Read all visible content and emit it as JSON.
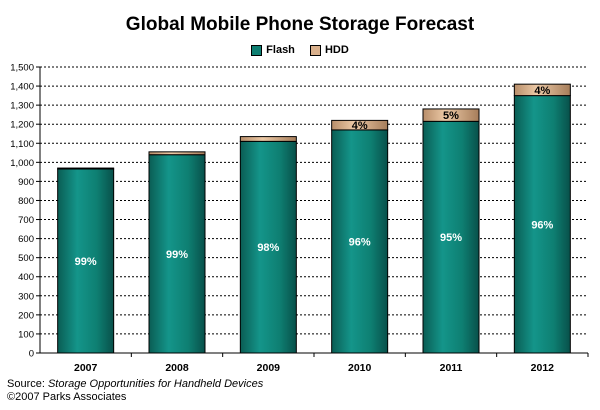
{
  "chart_data": {
    "type": "bar",
    "stacked": true,
    "title": "Global Mobile Phone Storage Forecast",
    "categories": [
      "2007",
      "2008",
      "2009",
      "2010",
      "2011",
      "2012"
    ],
    "series": [
      {
        "name": "Flash",
        "color": "#0e7f72",
        "values": [
          965,
          1040,
          1110,
          1170,
          1215,
          1350
        ],
        "labels": [
          "99%",
          "99%",
          "98%",
          "96%",
          "95%",
          "96%"
        ]
      },
      {
        "name": "HDD",
        "color": "#d9b08c",
        "values": [
          5,
          15,
          25,
          50,
          65,
          60
        ],
        "labels": [
          "",
          "",
          "",
          "4%",
          "5%",
          "4%"
        ]
      }
    ],
    "ylim": [
      0,
      1500
    ],
    "ytick_step": 100,
    "y_tick_labels": [
      "0",
      "100",
      "200",
      "300",
      "400",
      "500",
      "600",
      "700",
      "800",
      "900",
      "1,000",
      "1,100",
      "1,200",
      "1,300",
      "1,400",
      "1,500"
    ],
    "grid": true,
    "legend_position": "top-center"
  },
  "source": {
    "prefix": "Source: ",
    "title": "Storage Opportunities for Handheld Devices",
    "copyright": "©2007 Parks Associates"
  }
}
